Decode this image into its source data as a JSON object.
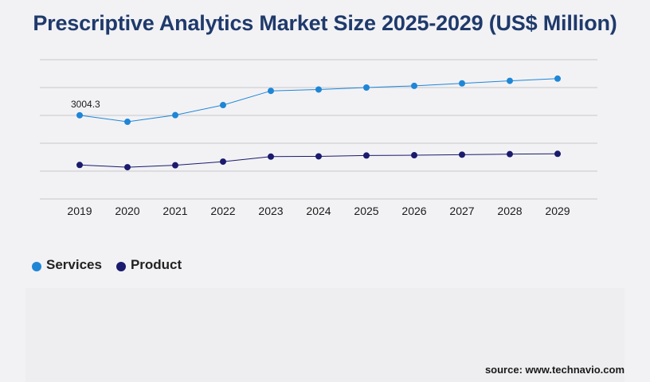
{
  "title": "Prescriptive Analytics Market Size 2025-2029 (US$ Million)",
  "source": "source: www.technavio.com",
  "colors": {
    "services": "#1f86d6",
    "product": "#1a1a6e",
    "grid": "#c8c8cc",
    "title": "#1f3a6b"
  },
  "legend": [
    {
      "label": "Services",
      "color": "#1f86d6"
    },
    {
      "label": "Product",
      "color": "#1a1a6e"
    }
  ],
  "chart_data": {
    "type": "line",
    "title": "Prescriptive Analytics Market Size 2025-2029 (US$ Million)",
    "xlabel": "",
    "ylabel": "",
    "categories": [
      "2019",
      "2020",
      "2021",
      "2022",
      "2023",
      "2024",
      "2025",
      "2026",
      "2027",
      "2028",
      "2029"
    ],
    "series": [
      {
        "name": "Services",
        "color": "#1f86d6",
        "values": [
          3004.3,
          2770,
          3010,
          3370,
          3880,
          3930,
          4000,
          4060,
          4150,
          4240,
          4320
        ]
      },
      {
        "name": "Product",
        "color": "#1a1a6e",
        "values": [
          1220,
          1140,
          1210,
          1340,
          1520,
          1530,
          1560,
          1570,
          1590,
          1610,
          1620
        ]
      }
    ],
    "annotations": [
      {
        "series": "Services",
        "category": "2019",
        "text": "3004.3"
      }
    ],
    "ylim": [
      0,
      5000
    ],
    "y_ticks": [
      0,
      1000,
      2000,
      3000,
      4000,
      5000
    ],
    "y_tick_labels_visible": false,
    "grid": true,
    "legend_position": "bottom-left"
  }
}
